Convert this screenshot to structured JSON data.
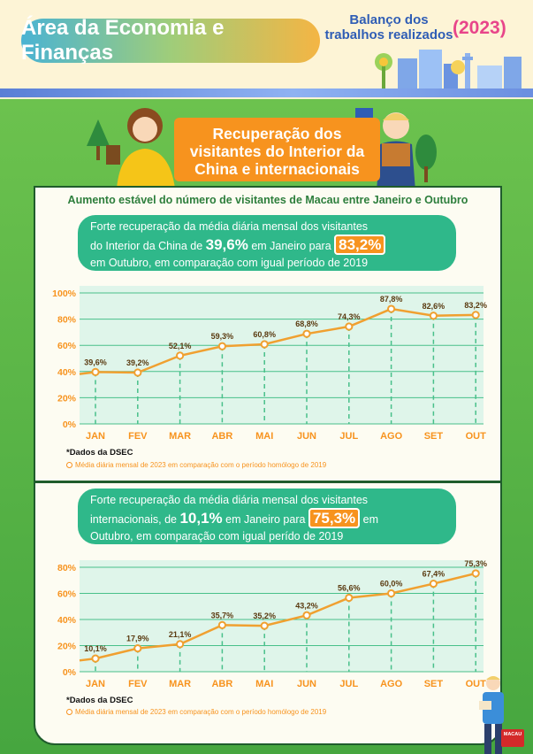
{
  "header": {
    "area_title": "Área da Economia e Finanças",
    "balanco_line1": "Balanço dos",
    "balanco_line2": "trabalhos realizados",
    "year": "(2023)"
  },
  "banner": {
    "line1": "Recuperação dos",
    "line2": "visitantes do Interior da",
    "line3": "China e internacionais"
  },
  "section_heading": "Aumento estável do número de visitantes de Macau entre Janeiro e Outubro",
  "summary1": {
    "text_a": "Forte recuperação da média diária mensal dos visitantes",
    "text_b": "do Interior da China de ",
    "value_start": "39,6%",
    "text_c": " em Janeiro para ",
    "value_end": "83,2%",
    "text_d": "em Outubro, em comparação com igual período de 2019"
  },
  "summary2": {
    "text_a": "Forte recuperação da média diária mensal dos visitantes",
    "text_b": "internacionais, de ",
    "value_start": "10,1%",
    "text_c": " em Janeiro para ",
    "value_end": "75,3%",
    "text_d": " em",
    "text_e": "Outubro, em comparação com igual perído de 2019"
  },
  "note1": {
    "source": "*Dados da DSEC",
    "legend": "Média diária mensal de 2023 em comparação com o período homólogo de 2019"
  },
  "note2": {
    "source": "*Dados da DSEC",
    "legend": "Média diária mensal de 2023 em comparação com o período homólogo de 2019"
  },
  "logo_text": "MACAU",
  "colors": {
    "line": "#f0a030",
    "plot_bg": "#dff5ea",
    "grid": "#48c08a",
    "axis_label": "#f7931e",
    "summary_bg": "#2fb88a",
    "banner": "#f7931e"
  },
  "chart_data": [
    {
      "type": "line",
      "categories": [
        "JAN",
        "FEV",
        "MAR",
        "ABR",
        "MAI",
        "JUN",
        "JUL",
        "AGO",
        "SET",
        "OUT"
      ],
      "values": [
        39.6,
        39.2,
        52.1,
        59.3,
        60.8,
        68.8,
        74.3,
        87.8,
        82.6,
        83.2
      ],
      "value_labels": [
        "39,6%",
        "39,2%",
        "52,1%",
        "59,3%",
        "60,8%",
        "68,8%",
        "74,3%",
        "87,8%",
        "82,6%",
        "83,2%"
      ],
      "y_ticks": [
        0,
        20,
        40,
        60,
        80,
        100
      ],
      "y_tick_labels": [
        "0%",
        "20%",
        "40%",
        "60%",
        "80%",
        "100%"
      ],
      "ylim": [
        0,
        100
      ],
      "grid": true
    },
    {
      "type": "line",
      "categories": [
        "JAN",
        "FEV",
        "MAR",
        "ABR",
        "MAI",
        "JUN",
        "JUL",
        "AGO",
        "SET",
        "OUT"
      ],
      "values": [
        10.1,
        17.9,
        21.1,
        35.7,
        35.2,
        43.2,
        56.6,
        60.0,
        67.4,
        75.3
      ],
      "value_labels": [
        "10,1%",
        "17,9%",
        "21,1%",
        "35,7%",
        "35,2%",
        "43,2%",
        "56,6%",
        "60,0%",
        "67,4%",
        "75,3%"
      ],
      "y_ticks": [
        0,
        20,
        40,
        60,
        80
      ],
      "y_tick_labels": [
        "0%",
        "20%",
        "40%",
        "60%",
        "80%"
      ],
      "ylim": [
        0,
        80
      ],
      "grid": true
    }
  ]
}
